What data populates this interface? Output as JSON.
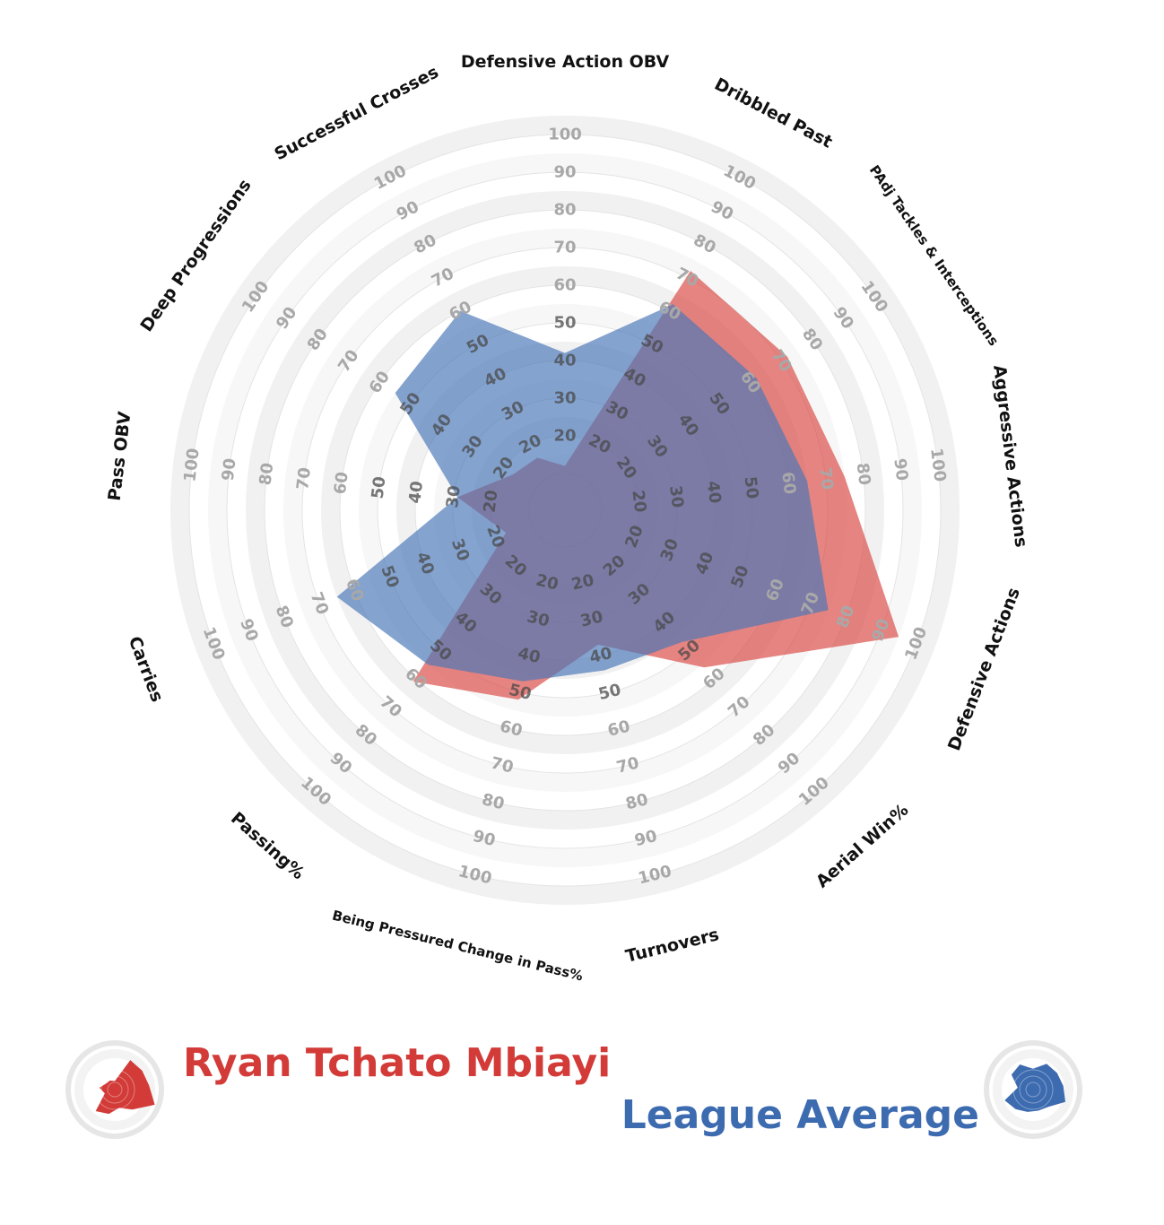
{
  "chart_data": {
    "type": "radar",
    "title": "",
    "range": [
      0,
      100
    ],
    "ring_ticks": [
      20,
      30,
      40,
      50,
      60,
      70,
      80,
      90,
      100
    ],
    "axes": [
      {
        "label": "Defensive Action OBV",
        "ticks": [
          20,
          30,
          40,
          50,
          60,
          70,
          80,
          90,
          100
        ]
      },
      {
        "label": "Dribbled Past",
        "ticks": [
          20,
          30,
          40,
          50,
          60,
          70,
          80,
          90,
          100
        ]
      },
      {
        "label": "PAdj Tackles & Interceptions",
        "ticks": [
          20,
          30,
          40,
          50,
          60,
          70,
          80,
          90,
          100
        ]
      },
      {
        "label": "Aggressive Actions",
        "ticks": [
          20,
          30,
          40,
          50,
          60,
          70,
          80,
          90,
          100
        ]
      },
      {
        "label": "Defensive Actions",
        "ticks": [
          20,
          30,
          40,
          50,
          60,
          70,
          80,
          90,
          100
        ]
      },
      {
        "label": "Aerial Win%",
        "ticks": [
          20,
          30,
          40,
          50,
          60,
          70,
          80,
          90,
          100
        ]
      },
      {
        "label": "Turnovers",
        "ticks": [
          20,
          30,
          40,
          50,
          60,
          70,
          80,
          90,
          100
        ]
      },
      {
        "label": "Being Pressured Change in Pass%",
        "ticks": [
          20,
          30,
          40,
          50,
          60,
          70,
          80,
          90,
          100
        ]
      },
      {
        "label": "Passing%",
        "ticks": [
          20,
          30,
          40,
          50,
          60,
          70,
          80,
          90,
          100
        ]
      },
      {
        "label": "Carries",
        "ticks": [
          20,
          30,
          40,
          50,
          60,
          70,
          80,
          90,
          100
        ]
      },
      {
        "label": "Pass OBV",
        "ticks": [
          20,
          30,
          40,
          50,
          60,
          70,
          80,
          90,
          100
        ]
      },
      {
        "label": "Deep Progressions",
        "ticks": [
          20,
          30,
          40,
          50,
          60,
          70,
          80,
          90,
          100
        ]
      },
      {
        "label": "Successful Crosses",
        "ticks": [
          20,
          30,
          40,
          50,
          60,
          70,
          80,
          90,
          100
        ]
      }
    ],
    "series": [
      {
        "name": "Ryan Tchato Mbiayi",
        "color": "#d94a46",
        "values": [
          12,
          72,
          72,
          75,
          95,
          56,
          37,
          52,
          61,
          17,
          29,
          17,
          16
        ]
      },
      {
        "name": "League Average",
        "color": "#4a78b8",
        "values": [
          42,
          62,
          62,
          65,
          75,
          47,
          44,
          47,
          55,
          65,
          29,
          55,
          60
        ]
      }
    ],
    "legend": "bottom",
    "grid": true
  },
  "legend": {
    "player_name": "Ryan Tchato Mbiayi",
    "player_color": "#d23b38",
    "average_name": "League Average",
    "average_color": "#3d6bb0"
  }
}
